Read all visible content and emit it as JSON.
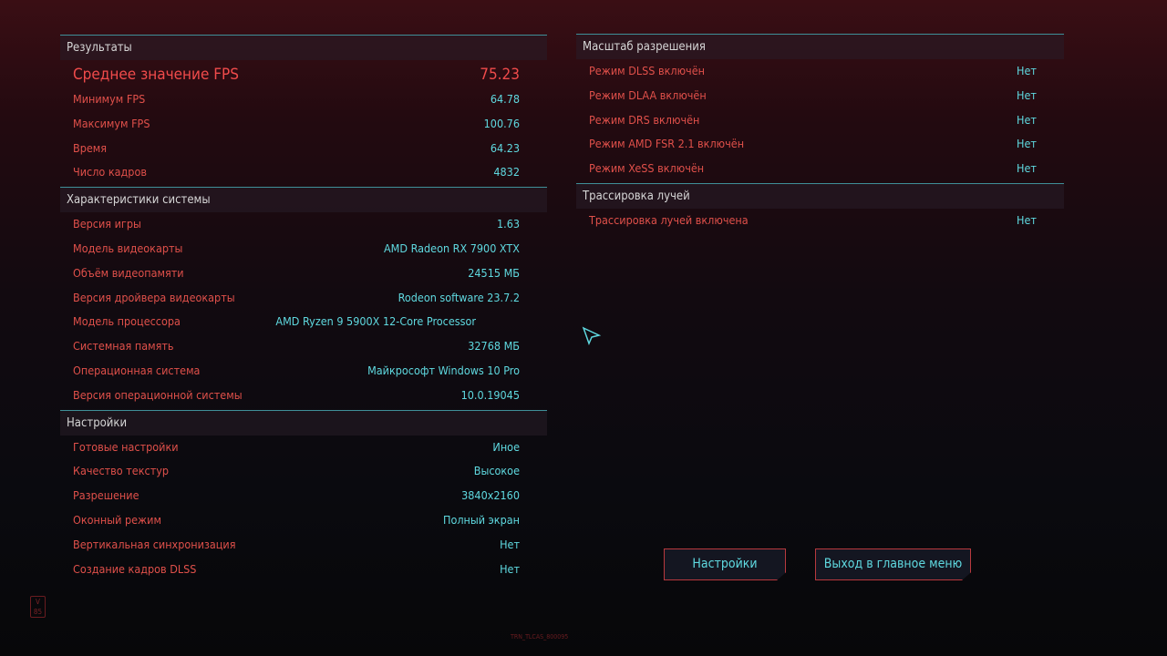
{
  "results": {
    "title": "Результаты",
    "avg": {
      "label": "Среднее значение FPS",
      "value": "75.23"
    },
    "rows": [
      {
        "label": "Минимум FPS",
        "value": "64.78"
      },
      {
        "label": "Максимум FPS",
        "value": "100.76"
      },
      {
        "label": "Время",
        "value": "64.23"
      },
      {
        "label": "Число кадров",
        "value": "4832"
      }
    ]
  },
  "system": {
    "title": "Характеристики системы",
    "rows": [
      {
        "label": "Версия игры",
        "value": "1.63"
      },
      {
        "label": "Модель видеокарты",
        "value": "AMD Radeon RX 7900 XTX"
      },
      {
        "label": "Объём видеопамяти",
        "value": "24515 МБ"
      },
      {
        "label": "Версия дройвера видеокарты",
        "value": "Rodeon software 23.7.2"
      },
      {
        "label": "Модель процессора",
        "value": "AMD Ryzen 9 5900X 12-Core Processor"
      },
      {
        "label": "Системная память",
        "value": "32768 МБ"
      },
      {
        "label": "Операционная система",
        "value": "Майкрософт Windows 10 Pro"
      },
      {
        "label": "Версия операционной системы",
        "value": "10.0.19045"
      }
    ]
  },
  "settings": {
    "title": "Настройки",
    "rows": [
      {
        "label": "Готовые настройки",
        "value": "Иное"
      },
      {
        "label": "Качество текстур",
        "value": "Высокое"
      },
      {
        "label": "Разрешение",
        "value": "3840x2160"
      },
      {
        "label": "Оконный режим",
        "value": "Полный экран"
      },
      {
        "label": "Вертикальная синхронизация",
        "value": "Нет"
      },
      {
        "label": "Создание кадров DLSS",
        "value": "Нет"
      }
    ]
  },
  "scaling": {
    "title": "Масштаб разрешения",
    "rows": [
      {
        "label": "Режим DLSS включён",
        "value": "Нет"
      },
      {
        "label": "Режим DLAA включён",
        "value": "Нет"
      },
      {
        "label": "Режим DRS включён",
        "value": "Нет"
      },
      {
        "label": "Режим AMD FSR 2.1 включён",
        "value": "Нет"
      },
      {
        "label": "Режим XeSS включён",
        "value": "Нет"
      }
    ]
  },
  "raytracing": {
    "title": "Трассировка лучей",
    "rows": [
      {
        "label": "Трассировка лучей включена",
        "value": "Нет"
      }
    ]
  },
  "buttons": {
    "settings": "Настройки",
    "exit": "Выход в главное меню"
  },
  "deco": {
    "logo": "V 85",
    "code": "TRN_TLCAS_800095"
  },
  "colors": {
    "label": "#e0504a",
    "value": "#5fd9e0",
    "accent_line": "#3f8f98",
    "button_border": "#b8393e"
  }
}
